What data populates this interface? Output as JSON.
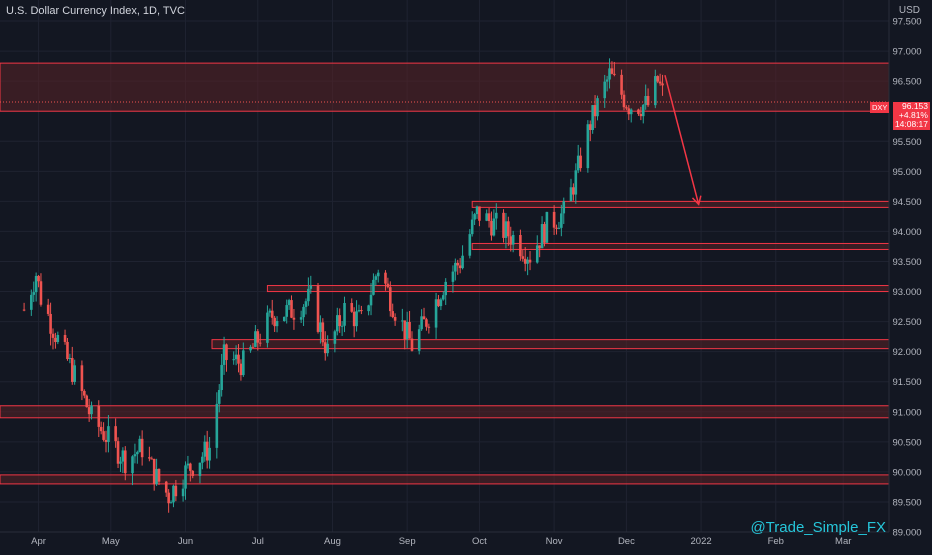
{
  "header": {
    "title": "U.S. Dollar Currency Index, 1D, TVC",
    "unit": "USD"
  },
  "watermark": "@Trade_Simple_FX",
  "price_tag": {
    "symbol": "DXY",
    "price": "96.153",
    "change": "+4.81%",
    "countdown": "14:08:17"
  },
  "colors": {
    "background": "#131722",
    "zone_stroke": "#f23645",
    "zone_fill": "#5a2227",
    "up_candle": "#26a69a",
    "down_candle": "#ef5350",
    "arrow": "#f23645",
    "axis_text": "#b2b5be"
  },
  "chart_data": {
    "type": "candlestick",
    "title": "U.S. Dollar Currency Index, 1D, TVC",
    "ylabel": "USD",
    "ylim": [
      89.0,
      98.0
    ],
    "yticks": [
      "97.500",
      "97.000",
      "96.500",
      "96.000",
      "95.500",
      "95.000",
      "94.500",
      "94.000",
      "93.500",
      "93.000",
      "92.500",
      "92.000",
      "91.500",
      "91.000",
      "90.500",
      "90.000",
      "89.500",
      "89.000"
    ],
    "xticks": [
      "Apr",
      "May",
      "Jun",
      "Jul",
      "Aug",
      "Sep",
      "Oct",
      "Nov",
      "Dec",
      "2022",
      "Feb",
      "Mar"
    ],
    "last_price": 96.153,
    "series": [
      {
        "points": [
          {
            "date": "2021-03-26",
            "close": 92.7
          },
          {
            "date": "2021-03-31",
            "close": 93.3
          },
          {
            "date": "2021-04-02",
            "close": 92.9
          },
          {
            "date": "2021-04-09",
            "close": 92.2
          },
          {
            "date": "2021-04-16",
            "close": 91.6
          },
          {
            "date": "2021-04-23",
            "close": 90.9
          },
          {
            "date": "2021-04-29",
            "close": 90.6
          },
          {
            "date": "2021-05-07",
            "close": 90.2
          },
          {
            "date": "2021-05-14",
            "close": 90.4
          },
          {
            "date": "2021-05-20",
            "close": 89.9
          },
          {
            "date": "2021-05-25",
            "close": 89.6
          },
          {
            "date": "2021-06-01",
            "close": 90.0
          },
          {
            "date": "2021-06-11",
            "close": 90.4
          },
          {
            "date": "2021-06-17",
            "close": 91.9
          },
          {
            "date": "2021-06-25",
            "close": 91.8
          },
          {
            "date": "2021-07-07",
            "close": 92.6
          },
          {
            "date": "2021-07-16",
            "close": 92.7
          },
          {
            "date": "2021-07-23",
            "close": 92.9
          },
          {
            "date": "2021-07-30",
            "close": 92.0
          },
          {
            "date": "2021-08-06",
            "close": 92.7
          },
          {
            "date": "2021-08-13",
            "close": 92.5
          },
          {
            "date": "2021-08-20",
            "close": 93.4
          },
          {
            "date": "2021-08-27",
            "close": 92.7
          },
          {
            "date": "2021-09-03",
            "close": 92.1
          },
          {
            "date": "2021-09-10",
            "close": 92.6
          },
          {
            "date": "2021-09-17",
            "close": 93.2
          },
          {
            "date": "2021-09-23",
            "close": 93.5
          },
          {
            "date": "2021-09-30",
            "close": 94.3
          },
          {
            "date": "2021-10-08",
            "close": 94.1
          },
          {
            "date": "2021-10-15",
            "close": 93.9
          },
          {
            "date": "2021-10-22",
            "close": 93.6
          },
          {
            "date": "2021-10-29",
            "close": 94.1
          },
          {
            "date": "2021-11-05",
            "close": 94.3
          },
          {
            "date": "2021-11-10",
            "close": 94.9
          },
          {
            "date": "2021-11-16",
            "close": 95.8
          },
          {
            "date": "2021-11-24",
            "close": 96.6
          },
          {
            "date": "2021-12-02",
            "close": 96.1
          },
          {
            "date": "2021-12-10",
            "close": 96.1
          },
          {
            "date": "2021-12-14",
            "close": 96.5
          },
          {
            "date": "2021-12-17",
            "close": 96.2
          }
        ]
      }
    ],
    "zones": [
      {
        "from": 96.0,
        "to": 96.8
      },
      {
        "from": 94.4,
        "to": 94.5
      },
      {
        "from": 93.7,
        "to": 93.8
      },
      {
        "from": 93.0,
        "to": 93.1
      },
      {
        "from": 92.05,
        "to": 92.2
      },
      {
        "from": 90.9,
        "to": 91.1
      },
      {
        "from": 89.8,
        "to": 89.95
      }
    ],
    "projection": {
      "from_date": "2021-12-17",
      "from_price": 96.6,
      "to_date": "2021-12-31",
      "to_price": 94.45
    }
  }
}
